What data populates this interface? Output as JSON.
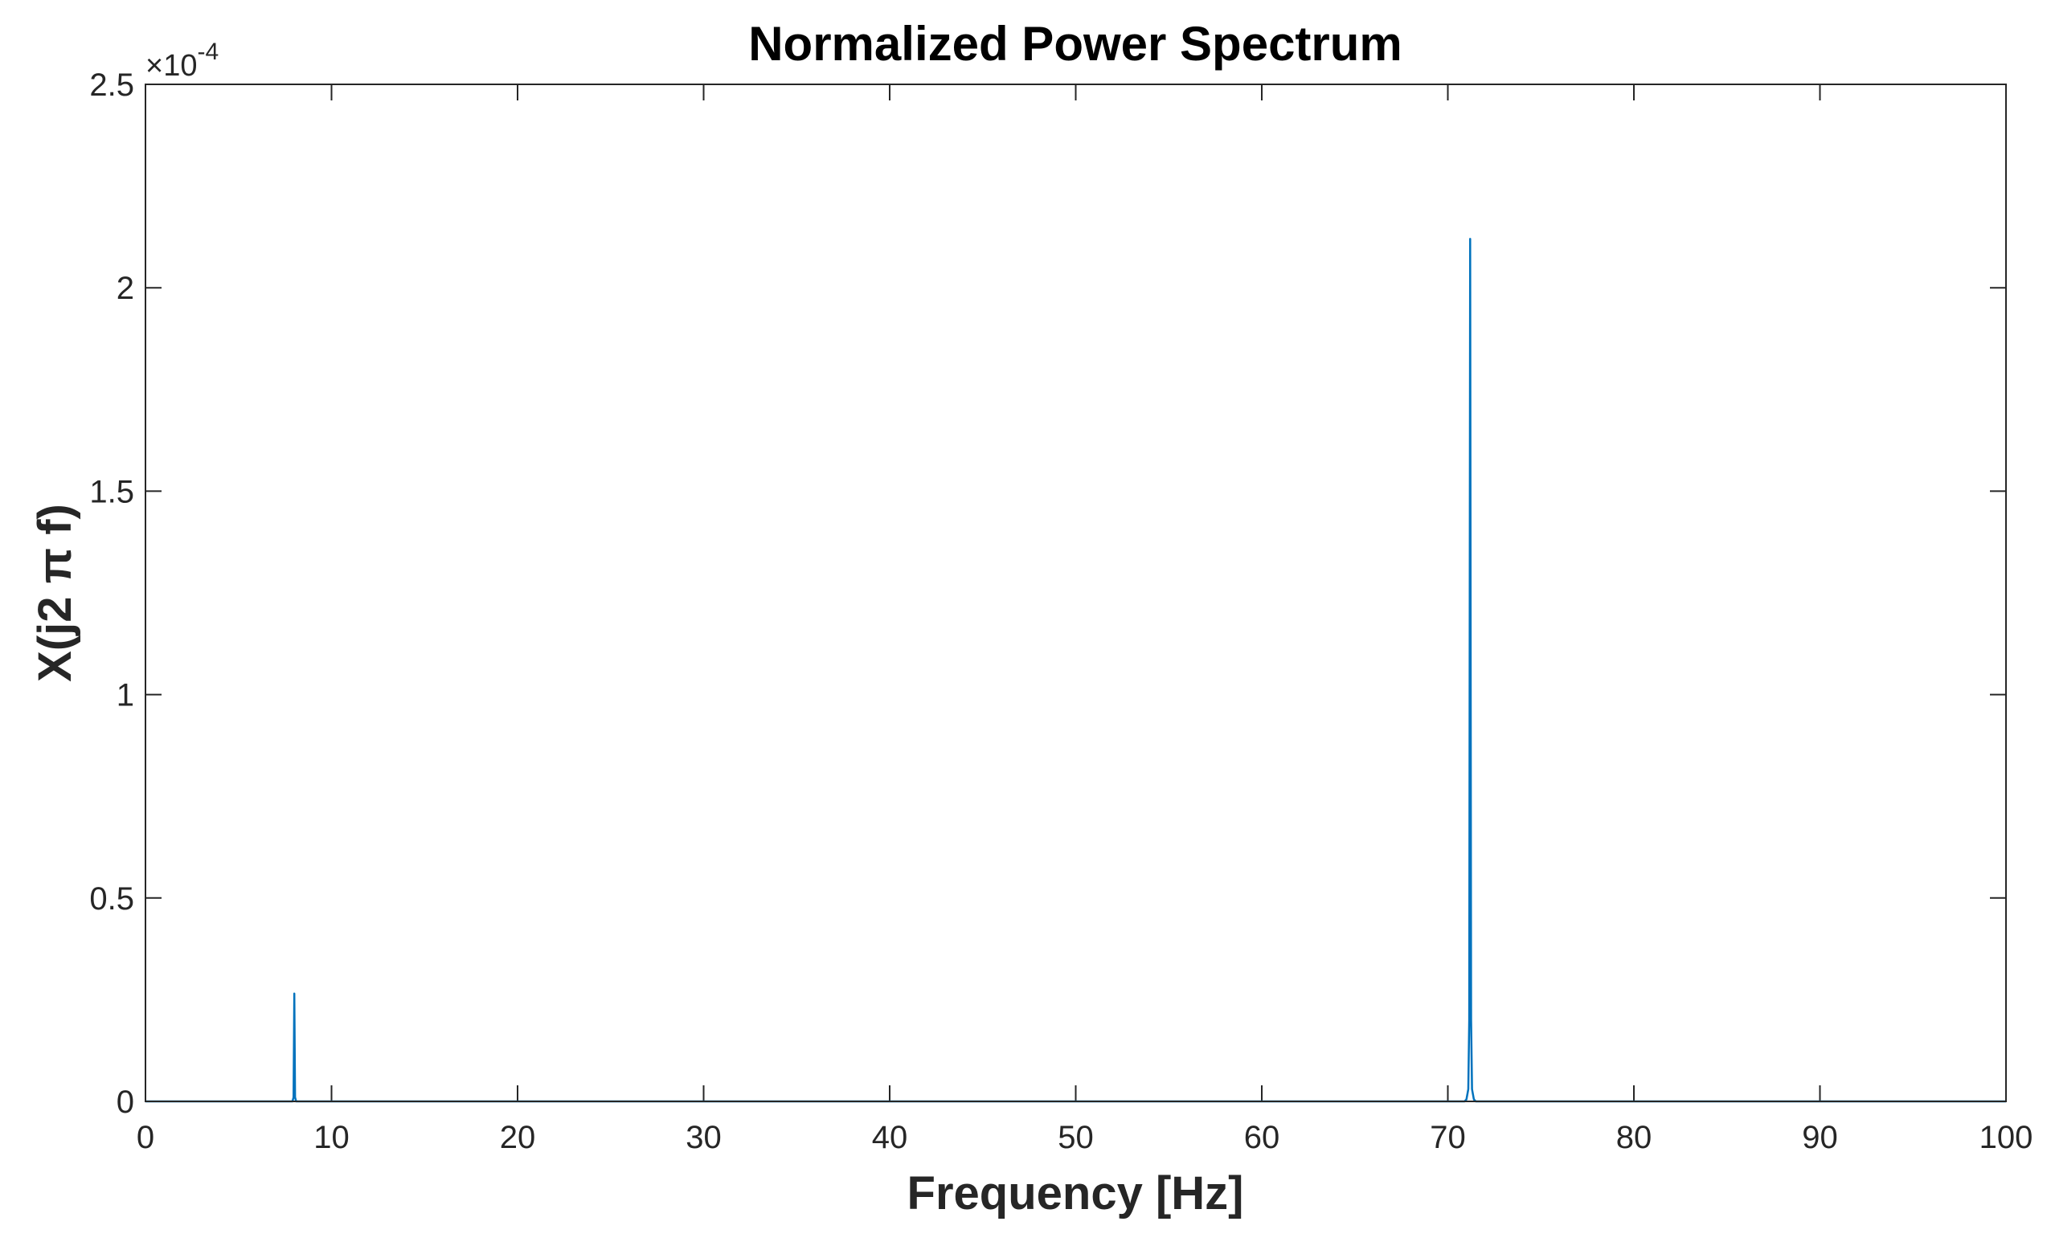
{
  "chart_data": {
    "type": "line",
    "title": "Normalized Power Spectrum",
    "xlabel": "Frequency [Hz]",
    "ylabel": "X(j2 π f)",
    "xlim": [
      0,
      100
    ],
    "ylim": [
      0,
      0.00025
    ],
    "x_ticks": [
      0,
      10,
      20,
      30,
      40,
      50,
      60,
      70,
      80,
      90,
      100
    ],
    "x_tick_labels": [
      "0",
      "10",
      "20",
      "30",
      "40",
      "50",
      "60",
      "70",
      "80",
      "90",
      "100"
    ],
    "y_ticks": [
      0,
      5e-05,
      0.0001,
      0.00015,
      0.0002,
      0.00025
    ],
    "y_tick_labels": [
      "0",
      "0.5",
      "1",
      "1.5",
      "2",
      "2.5"
    ],
    "y_exponent_label": "×10",
    "y_exponent_power": "-4",
    "grid": false,
    "line_color": "#0072BD",
    "series": [
      {
        "x": [
          0,
          7.9,
          7.96,
          8.0,
          8.04,
          8.1,
          70.9,
          71.0,
          71.1,
          71.15,
          71.2,
          71.25,
          71.3,
          71.4,
          71.5,
          100
        ],
        "values": [
          0,
          0,
          1e-06,
          2.65e-05,
          1e-06,
          0,
          0,
          5e-07,
          3e-06,
          2e-05,
          0.000212,
          2e-05,
          3e-06,
          5e-07,
          0,
          0
        ]
      }
    ]
  }
}
